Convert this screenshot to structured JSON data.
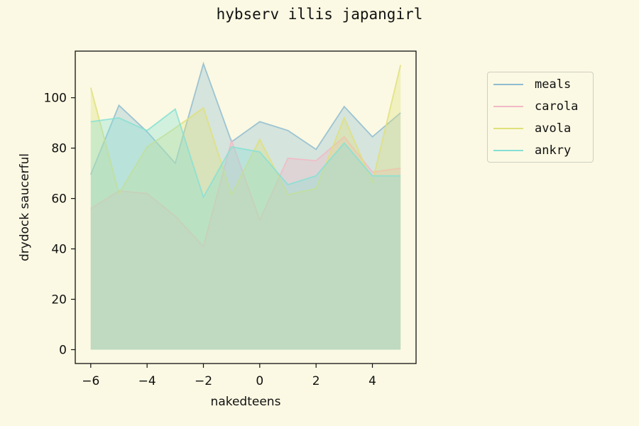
{
  "chart_data": {
    "type": "area",
    "title": "hybserv illis japangirl",
    "xlabel": "nakedteens",
    "ylabel": "drydock saucerful",
    "xlim": [
      -6.55,
      5.55
    ],
    "ylim": [
      -5.5,
      118.5
    ],
    "xticks": [
      -6,
      -4,
      -2,
      0,
      2,
      4
    ],
    "xtick_labels": [
      "−6",
      "−4",
      "−2",
      "0",
      "2",
      "4"
    ],
    "yticks": [
      0,
      20,
      40,
      60,
      80,
      100
    ],
    "ytick_labels": [
      "0",
      "20",
      "40",
      "60",
      "80",
      "100"
    ],
    "x": [
      -6,
      -5,
      -4,
      -3,
      -2,
      -1,
      0,
      1,
      2,
      3,
      4,
      5
    ],
    "series": [
      {
        "name": "meals",
        "color": "#8fbcd0",
        "values": [
          69.5,
          97,
          86.5,
          74,
          113.5,
          82.5,
          90.5,
          87,
          79.5,
          96.5,
          84.5,
          94
        ]
      },
      {
        "name": "carola",
        "color": "#f2b8c6",
        "values": [
          56,
          63,
          62,
          53,
          41,
          83,
          51.5,
          76,
          75,
          84.5,
          70.5,
          72
        ]
      },
      {
        "name": "avola",
        "color": "#dfe07a",
        "values": [
          104,
          62,
          80.5,
          88,
          96,
          61.5,
          83.5,
          61.5,
          64,
          92,
          66.5,
          113
        ]
      },
      {
        "name": "ankry",
        "color": "#86e0d4",
        "values": [
          90.5,
          92,
          87,
          95.5,
          60.5,
          80.5,
          78.5,
          65.5,
          69,
          82,
          69,
          69
        ]
      }
    ],
    "legend_position": "outside-right",
    "grid": false
  }
}
